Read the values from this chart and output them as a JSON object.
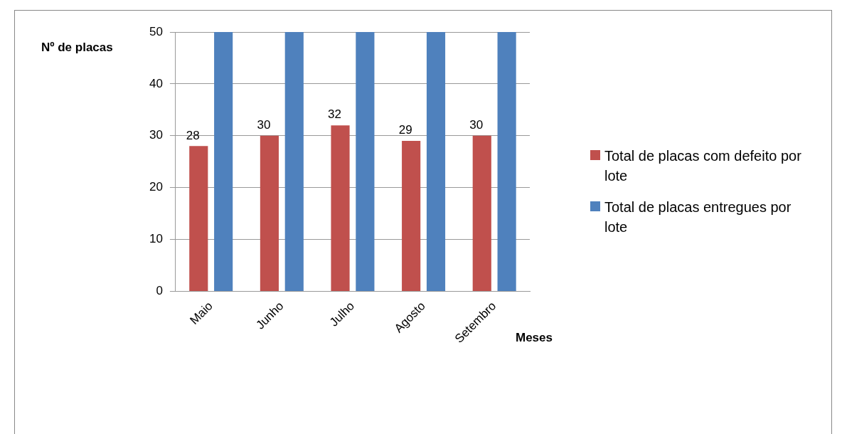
{
  "chart_data": {
    "type": "bar",
    "xlabel": "Meses",
    "ylabel": "Nº de placas",
    "categories": [
      "Maio",
      "Junho",
      "Julho",
      "Agosto",
      "Setembro"
    ],
    "series": [
      {
        "name": "Total de placas com defeito por lote",
        "color": "#c0504d",
        "values": [
          28,
          30,
          32,
          29,
          30
        ],
        "value_labels": [
          "28",
          "30",
          "32",
          "29",
          "30"
        ]
      },
      {
        "name": "Total de placas entregues por lote",
        "color": "#4f81bd",
        "values": [
          50,
          50,
          50,
          50,
          50
        ]
      }
    ],
    "ylim": [
      0,
      50
    ],
    "yticks": [
      0,
      10,
      20,
      30,
      40,
      50
    ],
    "grid": "y",
    "legend": "right"
  }
}
